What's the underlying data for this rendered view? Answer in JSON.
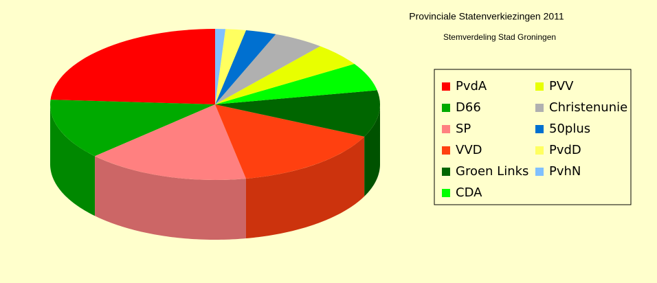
{
  "chart_data": {
    "type": "pie3d",
    "title": "Provinciale Statenverkiezingen 2011",
    "subtitle": "Stemverdeling Stad Groningen",
    "categories": [
      "PvdA",
      "D66",
      "SP",
      "VVD",
      "Groen Links",
      "CDA",
      "PVV",
      "Christenunie",
      "50plus",
      "PvdD",
      "PvhN"
    ],
    "values": [
      24,
      13,
      16,
      15,
      10,
      6,
      5,
      5,
      3,
      2,
      1
    ],
    "colors": [
      "#ff0000",
      "#00aa00",
      "#ff8080",
      "#ff4010",
      "#006600",
      "#00ff00",
      "#e8ff00",
      "#b0b0b0",
      "#0070d0",
      "#ffff60",
      "#80c0ff"
    ]
  }
}
